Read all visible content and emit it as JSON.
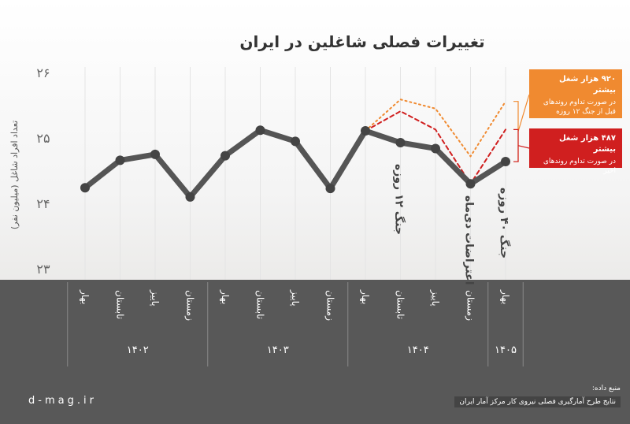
{
  "chart_data": {
    "type": "line",
    "title": "تغییرات فصلی شاغلین در ایران",
    "y_label": "تعداد افراد شاغل (میلیون نفر)",
    "categories": [
      "بهار",
      "تابستان",
      "پاییز",
      "زمستان",
      "بهار",
      "تابستان",
      "پاییز",
      "زمستان",
      "بهار",
      "تابستان",
      "پاییز",
      "زمستان",
      "بهار"
    ],
    "year_labels": [
      "۱۴۰۲",
      "۱۴۰۳",
      "۱۴۰۴",
      "۱۴۰۵"
    ],
    "series": [
      {
        "color": "#555555",
        "values": [
          24.25,
          24.67,
          24.76,
          24.11,
          24.74,
          25.13,
          24.96,
          24.24,
          25.12,
          24.94,
          24.85,
          24.31,
          24.65
        ]
      },
      {
        "color": "#f08a30",
        "values": [
          null,
          null,
          null,
          null,
          null,
          null,
          null,
          null,
          25.12,
          25.6,
          25.46,
          24.73,
          25.57
        ]
      },
      {
        "color": "#d01f1f",
        "values": [
          null,
          null,
          null,
          null,
          null,
          null,
          null,
          null,
          25.12,
          25.42,
          25.14,
          24.31,
          25.14
        ]
      }
    ],
    "ylim": [
      23,
      26
    ],
    "yticks": [
      {
        "value": 23,
        "label": "۲۳"
      },
      {
        "value": 24,
        "label": "۲۴"
      },
      {
        "value": 25,
        "label": "۲۵"
      },
      {
        "value": 26,
        "label": "۲۶"
      }
    ],
    "annotations": [
      "جنگ ۱۲ روزه",
      "اعتراضات دی‌ماه",
      "جنگ ۴۰ روزه"
    ],
    "callouts": [
      {
        "headline": "۹۲۰ هزار شغل بیشتر",
        "text": "در صورت تداوم روندهای قبل از جنگ ۱۲ روزه",
        "color": "#f08a30"
      },
      {
        "headline": "۴۸۷ هزار شغل بیشتر",
        "text": "در صورت تداوم روندهای اخیر",
        "color": "#d01f1f"
      }
    ],
    "source_label": "منبع داده:",
    "source": "نتایج طرح آمارگیری فصلی نیروی کار مرکز آمار ایران",
    "website": "d-mag.ir"
  }
}
